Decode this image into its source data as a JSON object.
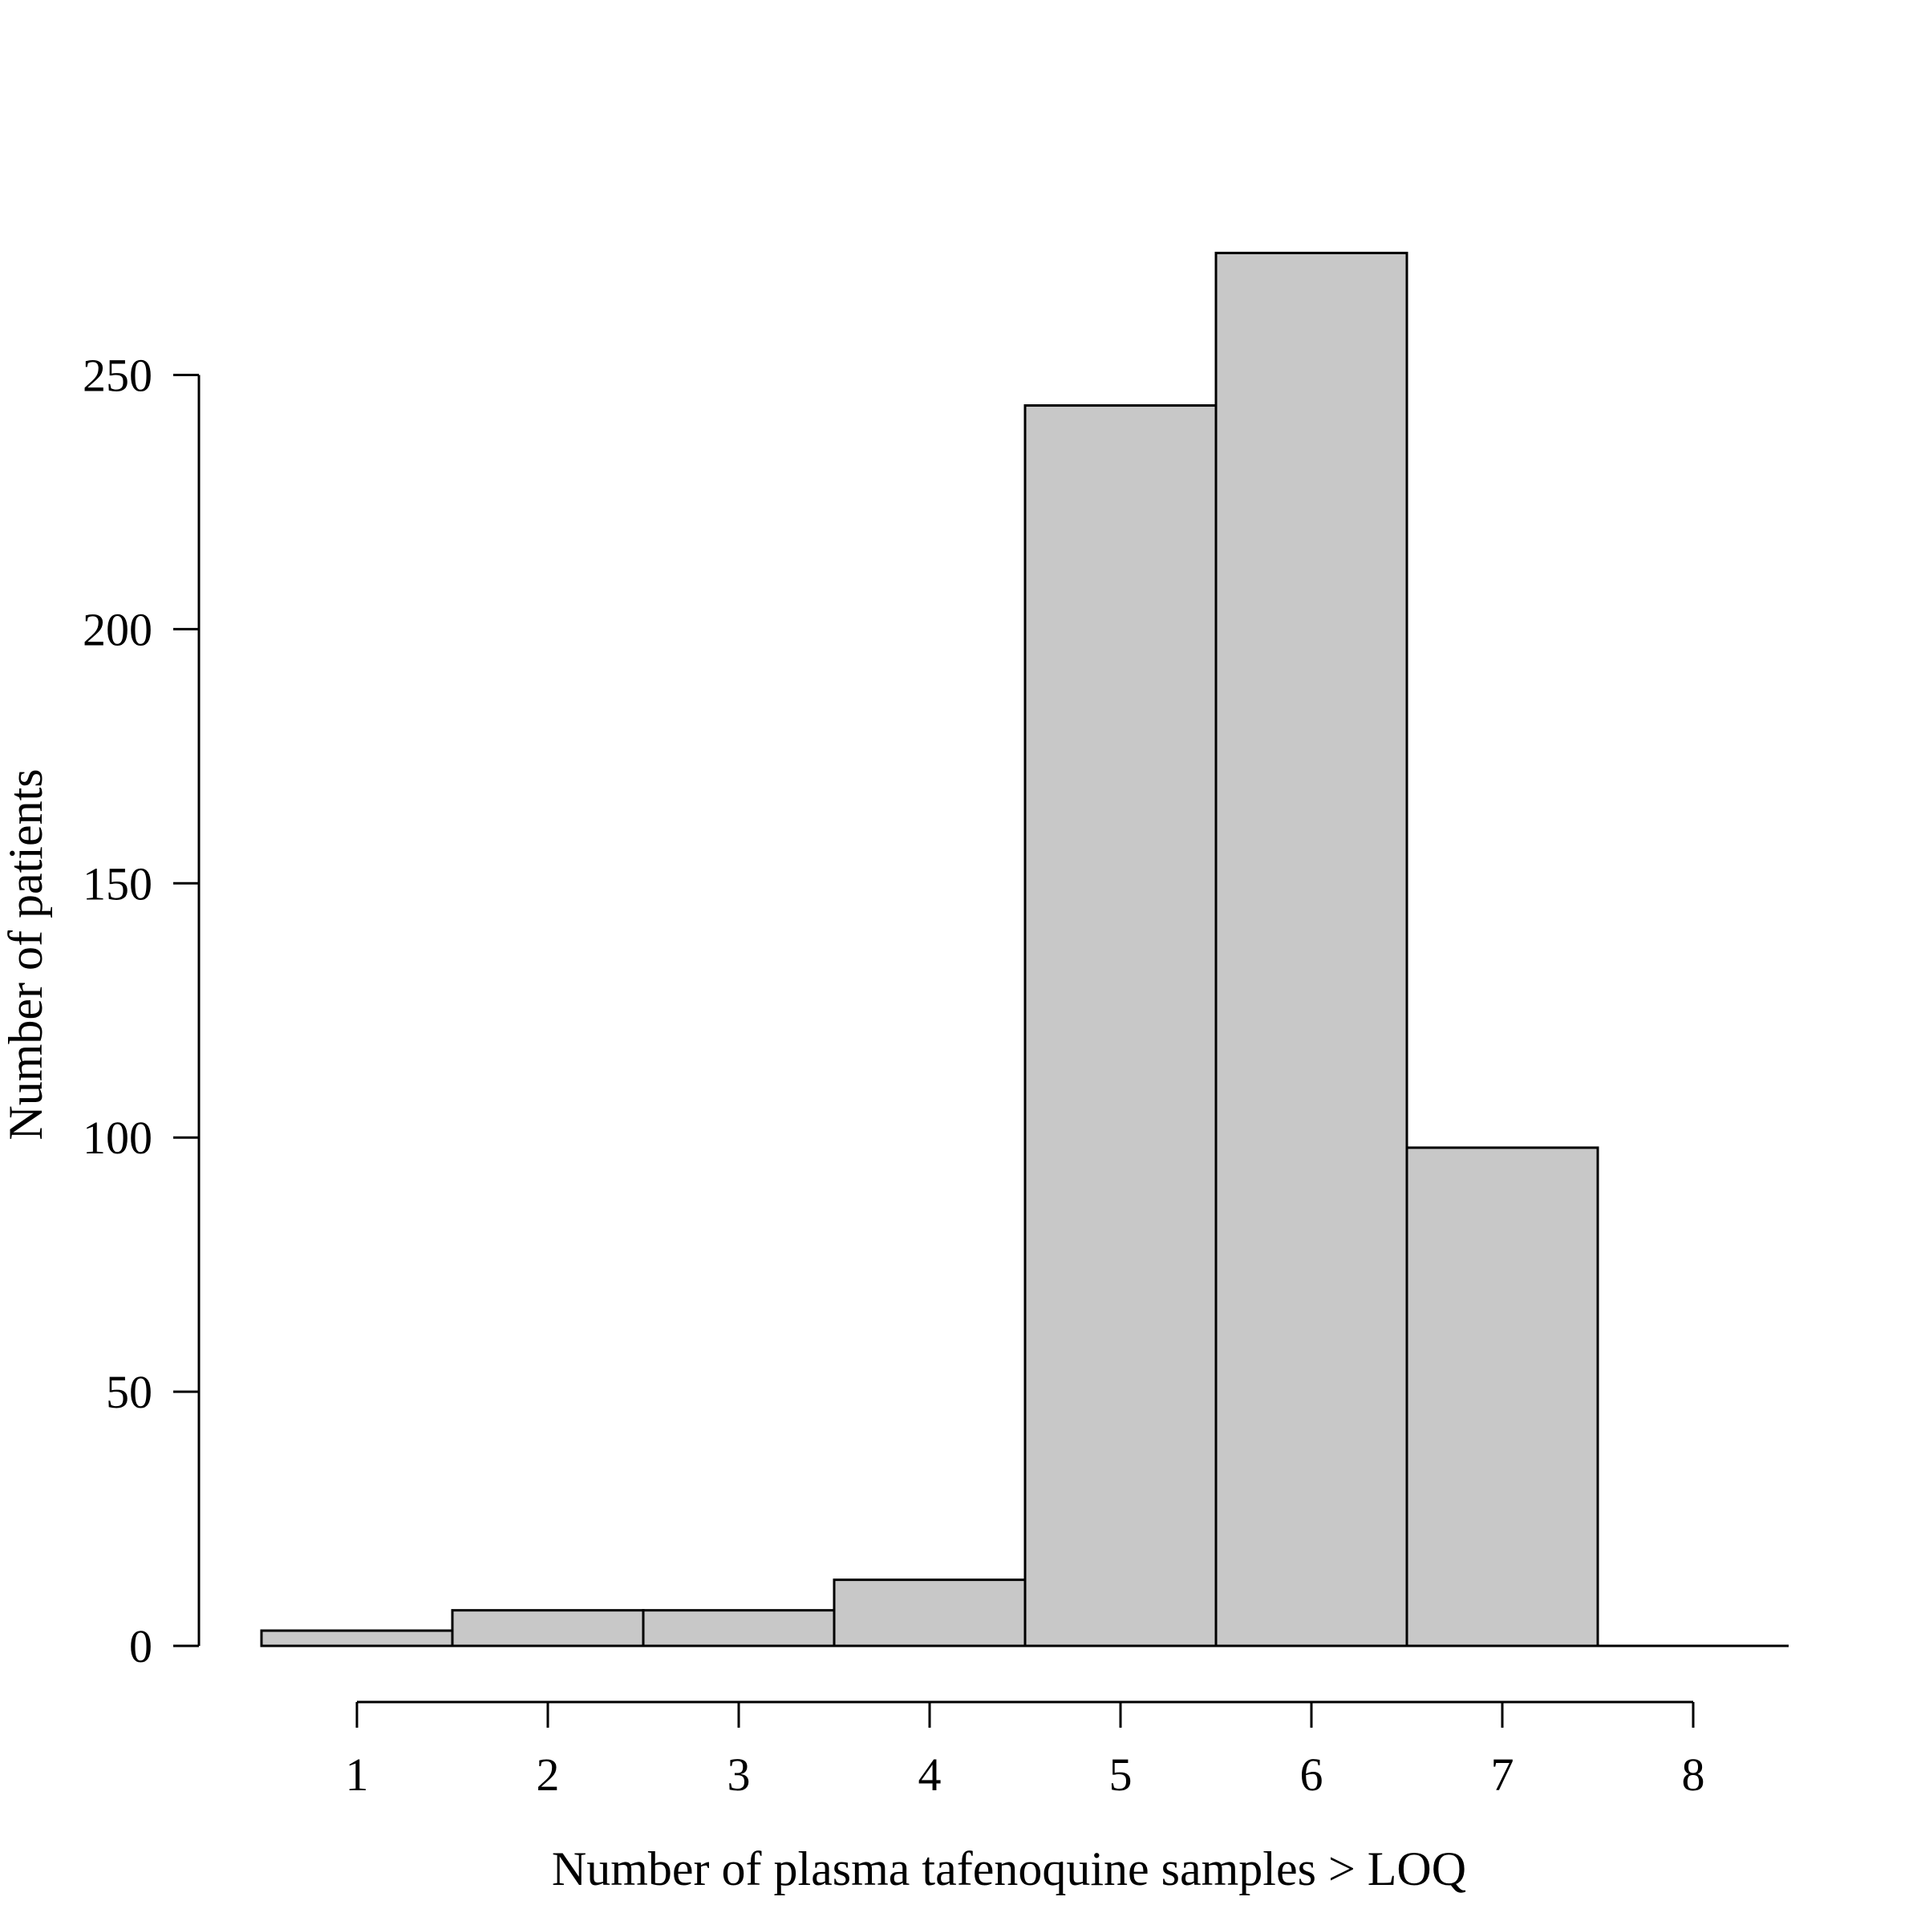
{
  "chart_data": {
    "type": "bar",
    "title": "",
    "xlabel": "Number of plasma tafenoquine samples > LOQ",
    "ylabel": "Number of patients",
    "categories": [
      "1",
      "2",
      "3",
      "4",
      "5",
      "6",
      "7",
      "8"
    ],
    "x": [
      1,
      2,
      3,
      4,
      5,
      6,
      7,
      8
    ],
    "values": [
      3,
      7,
      7,
      13,
      244,
      274,
      98,
      0
    ],
    "x_ticks": [
      "1",
      "2",
      "3",
      "4",
      "5",
      "6",
      "7",
      "8"
    ],
    "y_ticks": [
      "0",
      "50",
      "100",
      "150",
      "200",
      "250"
    ],
    "y_tick_values": [
      0,
      50,
      100,
      150,
      200,
      250
    ],
    "xlim": [
      0.5,
      8.5
    ],
    "ylim": [
      0,
      274
    ],
    "grid": false,
    "legend": "none",
    "colors": {
      "bar_fill": "#c8c8c8",
      "bar_stroke": "#000000",
      "axis": "#000000"
    }
  }
}
